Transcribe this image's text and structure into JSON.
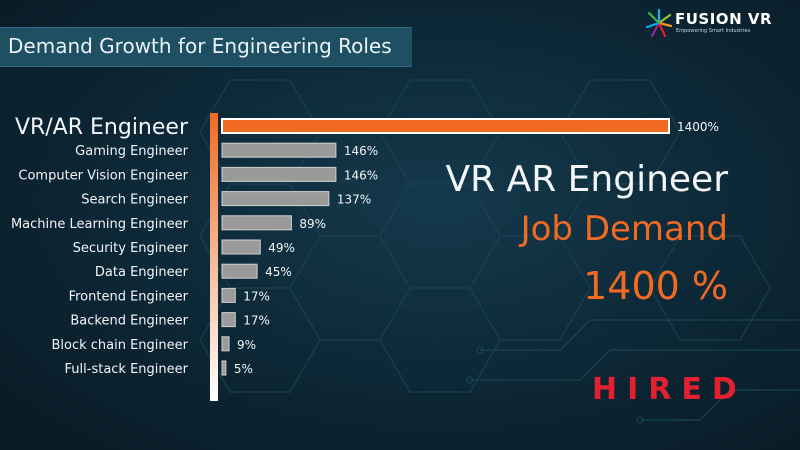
{
  "header": {
    "title": "Demand Growth for Engineering Roles",
    "logo_name": "FUSION VR",
    "logo_tagline": "Empowering Smart Industries",
    "logo_icon": "starburst-icon"
  },
  "highlight": {
    "role": "VR AR Engineer",
    "metric": "Job Demand",
    "value": "1400 %",
    "brand": "HIRED"
  },
  "colors": {
    "accent": "#f06a23",
    "bar": "#9a9a9a",
    "brand_red": "#e2202f"
  },
  "chart_data": {
    "type": "bar",
    "orientation": "horizontal",
    "title": "Demand Growth for Engineering Roles",
    "categories": [
      "VR/AR Engineer",
      "Gaming Engineer",
      "Computer Vision Engineer",
      "Search Engineer",
      "Machine Learning Engineer",
      "Security Engineer",
      "Data Engineer",
      "Frontend Engineer",
      "Backend Engineer",
      "Block chain Engineer",
      "Full-stack Engineer"
    ],
    "values": [
      1400,
      146,
      146,
      137,
      89,
      49,
      45,
      17,
      17,
      9,
      5
    ],
    "labels": [
      "1400%",
      "146%",
      "146%",
      "137%",
      "89%",
      "49%",
      "45%",
      "17%",
      "17%",
      "9%",
      "5%"
    ],
    "unit": "%",
    "highlighted_category": "VR/AR Engineer"
  }
}
